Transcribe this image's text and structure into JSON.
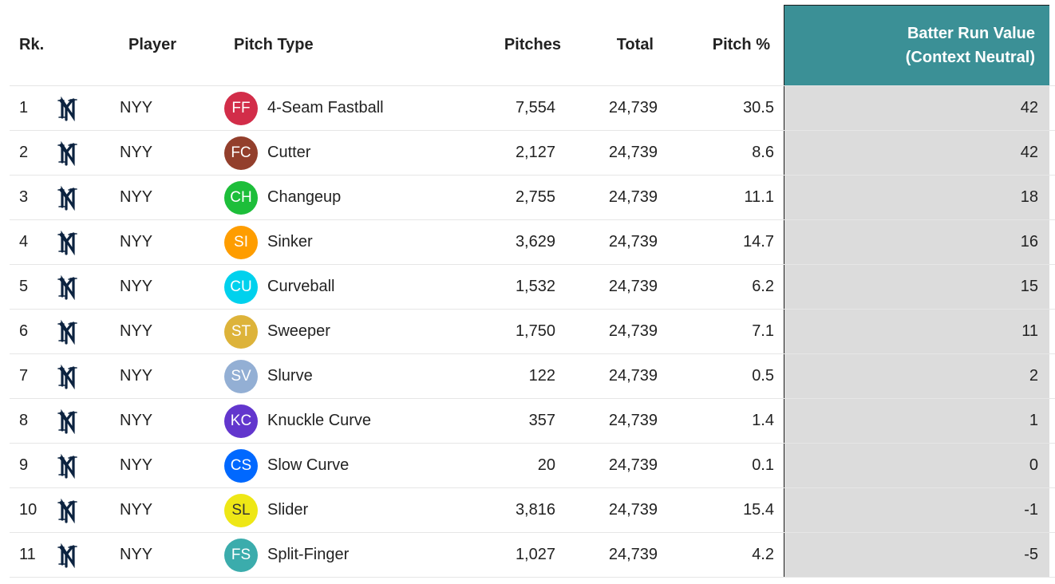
{
  "headers": {
    "rank": "Rk.",
    "player": "Player",
    "pitch_type": "Pitch Type",
    "pitches": "Pitches",
    "total": "Total",
    "pitch_pct": "Pitch %",
    "brv_line1": "Batter Run Value",
    "brv_line2": "(Context Neutral)"
  },
  "colors": {
    "header_accent": "#3b9096",
    "highlight_column": "#dcdcdc",
    "team_logo": "#0c2340"
  },
  "rows": [
    {
      "rank": "1",
      "team": "NYY",
      "team_icon": "yankees-logo-icon",
      "code": "FF",
      "color": "#d22d49",
      "pitch": "4-Seam Fastball",
      "pitches": "7,554",
      "total": "24,739",
      "pct": "30.5",
      "brv": "42"
    },
    {
      "rank": "2",
      "team": "NYY",
      "team_icon": "yankees-logo-icon",
      "code": "FC",
      "color": "#933f2c",
      "pitch": "Cutter",
      "pitches": "2,127",
      "total": "24,739",
      "pct": "8.6",
      "brv": "42"
    },
    {
      "rank": "3",
      "team": "NYY",
      "team_icon": "yankees-logo-icon",
      "code": "CH",
      "color": "#1dbe3a",
      "pitch": "Changeup",
      "pitches": "2,755",
      "total": "24,739",
      "pct": "11.1",
      "brv": "18"
    },
    {
      "rank": "4",
      "team": "NYY",
      "team_icon": "yankees-logo-icon",
      "code": "SI",
      "color": "#fe9d00",
      "pitch": "Sinker",
      "pitches": "3,629",
      "total": "24,739",
      "pct": "14.7",
      "brv": "16"
    },
    {
      "rank": "5",
      "team": "NYY",
      "team_icon": "yankees-logo-icon",
      "code": "CU",
      "color": "#00d1ed",
      "pitch": "Curveball",
      "pitches": "1,532",
      "total": "24,739",
      "pct": "6.2",
      "brv": "15"
    },
    {
      "rank": "6",
      "team": "NYY",
      "team_icon": "yankees-logo-icon",
      "code": "ST",
      "color": "#ddb33a",
      "pitch": "Sweeper",
      "pitches": "1,750",
      "total": "24,739",
      "pct": "7.1",
      "brv": "11"
    },
    {
      "rank": "7",
      "team": "NYY",
      "team_icon": "yankees-logo-icon",
      "code": "SV",
      "color": "#93afd4",
      "pitch": "Slurve",
      "pitches": "122",
      "total": "24,739",
      "pct": "0.5",
      "brv": "2"
    },
    {
      "rank": "8",
      "team": "NYY",
      "team_icon": "yankees-logo-icon",
      "code": "KC",
      "color": "#6236cd",
      "pitch": "Knuckle Curve",
      "pitches": "357",
      "total": "24,739",
      "pct": "1.4",
      "brv": "1"
    },
    {
      "rank": "9",
      "team": "NYY",
      "team_icon": "yankees-logo-icon",
      "code": "CS",
      "color": "#0068ff",
      "pitch": "Slow Curve",
      "pitches": "20",
      "total": "24,739",
      "pct": "0.1",
      "brv": "0"
    },
    {
      "rank": "10",
      "team": "NYY",
      "team_icon": "yankees-logo-icon",
      "code": "SL",
      "color": "#eee716",
      "pitch": "Slider",
      "pitches": "3,816",
      "total": "24,739",
      "pct": "15.4",
      "brv": "-1"
    },
    {
      "rank": "11",
      "team": "NYY",
      "team_icon": "yankees-logo-icon",
      "code": "FS",
      "color": "#3bacac",
      "pitch": "Split-Finger",
      "pitches": "1,027",
      "total": "24,739",
      "pct": "4.2",
      "brv": "-5"
    }
  ]
}
